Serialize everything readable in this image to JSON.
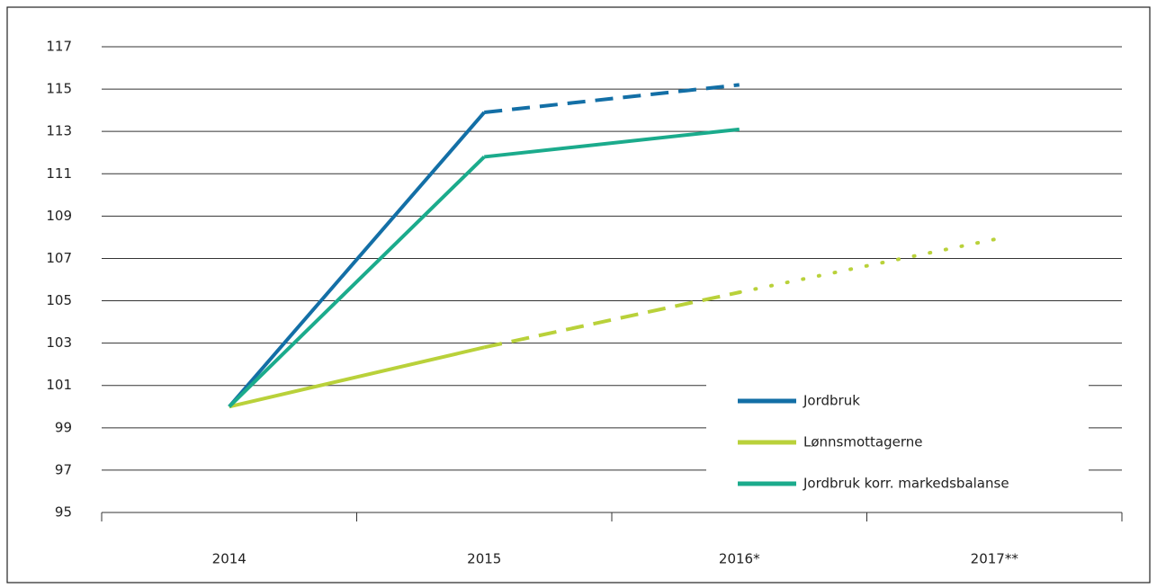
{
  "chart_data": {
    "type": "line",
    "categories": [
      "2014",
      "2015",
      "2016*",
      "2017**"
    ],
    "series": [
      {
        "name": "Jordbruk",
        "color": "#136fa6",
        "values": [
          100,
          113.9,
          115.2,
          null
        ],
        "styles": [
          "solid",
          "dashed",
          "dashed"
        ]
      },
      {
        "name": "Lønnsmottagerne",
        "color": "#b9d13a",
        "values": [
          100,
          102.8,
          105.4,
          107.9
        ],
        "styles": [
          "solid",
          "dashed",
          "dotted"
        ]
      },
      {
        "name": "Jordbruk korr. markedsbalanse",
        "color": "#1bab8c",
        "values": [
          100,
          111.8,
          113.1,
          null
        ],
        "styles": [
          "solid",
          "solid",
          "solid"
        ]
      }
    ],
    "ylim": [
      95,
      117
    ],
    "yticks": [
      95,
      97,
      99,
      101,
      103,
      105,
      107,
      109,
      111,
      113,
      115,
      117
    ],
    "grid": true,
    "legend": "lower right"
  }
}
